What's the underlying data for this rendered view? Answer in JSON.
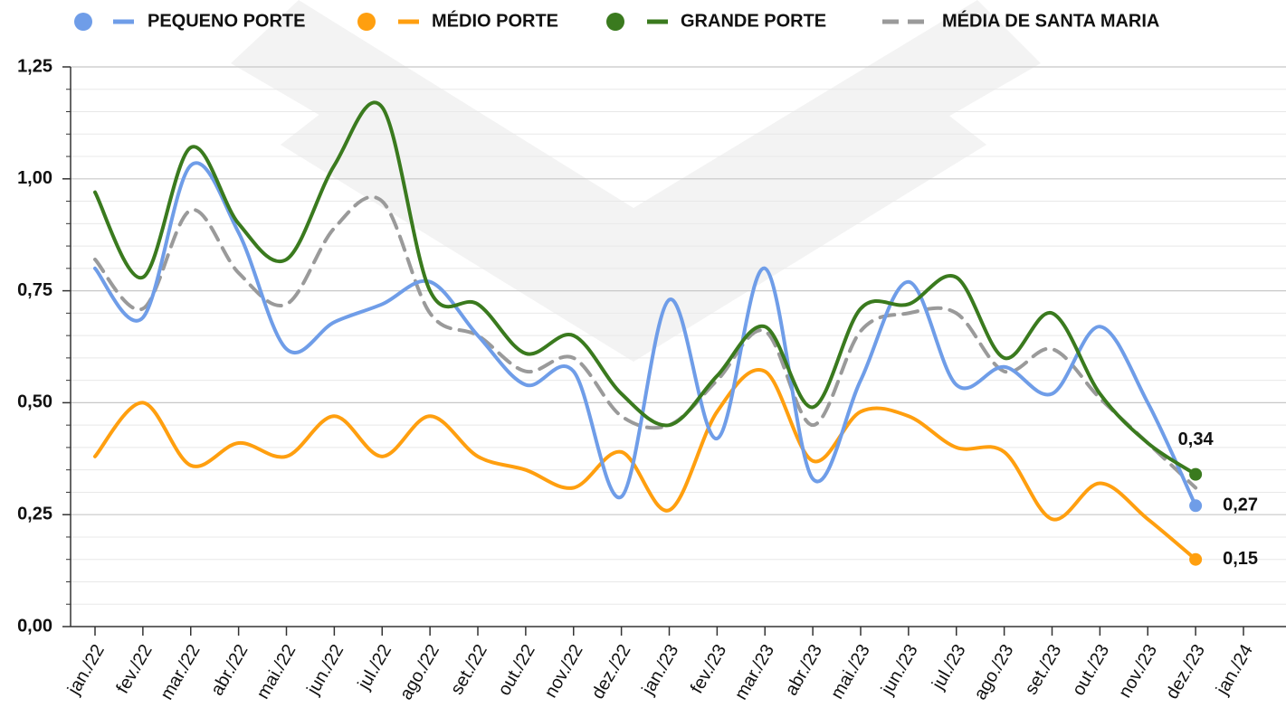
{
  "chart_data": {
    "type": "line",
    "categories": [
      "jan./22",
      "fev./22",
      "mar./22",
      "abr./22",
      "mai./22",
      "jun./22",
      "jul./22",
      "ago./22",
      "set./22",
      "out./22",
      "nov./22",
      "dez./22",
      "jan./23",
      "fev./23",
      "mar./23",
      "abr./23",
      "mai./23",
      "jun./23",
      "jul./23",
      "ago./23",
      "set./23",
      "out./23",
      "nov./23",
      "dez./23",
      "jan./24"
    ],
    "series": [
      {
        "name": "PEQUENO PORTE",
        "color": "#6f9de8",
        "dashed": false,
        "values": [
          0.8,
          0.69,
          1.03,
          0.88,
          0.62,
          0.68,
          0.72,
          0.77,
          0.65,
          0.54,
          0.57,
          0.29,
          0.73,
          0.42,
          0.8,
          0.33,
          0.55,
          0.77,
          0.54,
          0.58,
          0.52,
          0.67,
          0.5,
          0.27,
          null
        ],
        "value_labels": [
          null,
          null,
          null,
          null,
          null,
          null,
          null,
          null,
          null,
          null,
          null,
          null,
          null,
          null,
          null,
          null,
          null,
          null,
          null,
          null,
          null,
          null,
          null,
          "0,27",
          null
        ]
      },
      {
        "name": "MÉDIO PORTE",
        "color": "#ff9f0f",
        "dashed": false,
        "values": [
          0.38,
          0.5,
          0.36,
          0.41,
          0.38,
          0.47,
          0.38,
          0.47,
          0.38,
          0.35,
          0.31,
          0.39,
          0.26,
          0.48,
          0.57,
          0.37,
          0.48,
          0.47,
          0.4,
          0.39,
          0.24,
          0.32,
          0.24,
          0.15,
          null
        ],
        "value_labels": [
          null,
          null,
          null,
          null,
          null,
          null,
          null,
          null,
          null,
          null,
          null,
          null,
          null,
          null,
          null,
          null,
          null,
          null,
          null,
          null,
          null,
          null,
          null,
          "0,15",
          null
        ]
      },
      {
        "name": "GRANDE PORTE",
        "color": "#3a7a1e",
        "dashed": false,
        "values": [
          0.97,
          0.78,
          1.07,
          0.9,
          0.82,
          1.03,
          1.16,
          0.75,
          0.72,
          0.61,
          0.65,
          0.52,
          0.45,
          0.56,
          0.67,
          0.49,
          0.71,
          0.72,
          0.78,
          0.6,
          0.7,
          0.52,
          0.41,
          0.34,
          null
        ],
        "value_labels": [
          null,
          null,
          null,
          null,
          null,
          null,
          null,
          null,
          null,
          null,
          null,
          null,
          null,
          null,
          null,
          null,
          null,
          null,
          null,
          null,
          null,
          null,
          null,
          "0,34",
          null
        ]
      },
      {
        "name": "MÉDIA DE SANTA MARIA",
        "color": "#9a9a9a",
        "dashed": true,
        "values": [
          0.82,
          0.71,
          0.93,
          0.79,
          0.72,
          0.89,
          0.95,
          0.7,
          0.65,
          0.57,
          0.6,
          0.47,
          0.45,
          0.55,
          0.66,
          0.45,
          0.66,
          0.7,
          0.7,
          0.57,
          0.62,
          0.51,
          0.41,
          0.31,
          null
        ]
      }
    ],
    "ylim": [
      0,
      1.25
    ],
    "yticks": [
      {
        "value": 0,
        "label": "0,00"
      },
      {
        "value": 0.25,
        "label": "0,25"
      },
      {
        "value": 0.5,
        "label": "0,50"
      },
      {
        "value": 0.75,
        "label": "0,75"
      },
      {
        "value": 1,
        "label": "1,00"
      },
      {
        "value": 1.25,
        "label": "1,25"
      }
    ],
    "yticks_minor": [
      0.05,
      0.1,
      0.15,
      0.2,
      0.3,
      0.35,
      0.4,
      0.45,
      0.55,
      0.6,
      0.65,
      0.7,
      0.8,
      0.85,
      0.9,
      0.95,
      1.05,
      1.1,
      1.15,
      1.2
    ],
    "grid": true,
    "legend": "top"
  }
}
